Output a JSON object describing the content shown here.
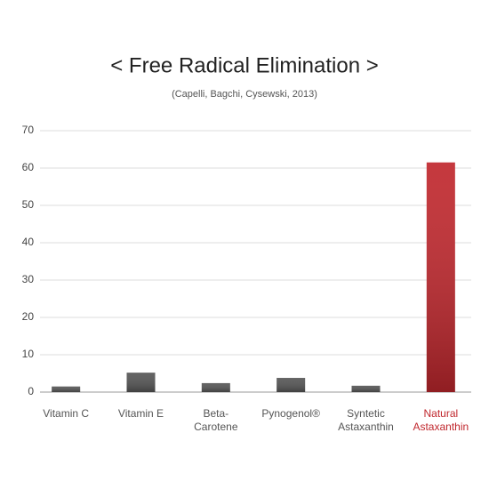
{
  "chart_data": {
    "type": "bar",
    "title": "< Free Radical Elimination >",
    "subtitle": "(Capelli, Bagchi, Cysewski, 2013)",
    "categories": [
      "Vitamin C",
      "Vitamin E",
      "Beta-\nCarotene",
      "Pynogenol®",
      "Syntetic\nAstaxanthin",
      "Natural\nAstaxanthin"
    ],
    "values": [
      1.5,
      5.2,
      2.4,
      3.8,
      1.7,
      61.5
    ],
    "colors": [
      "#555555",
      "#555555",
      "#555555",
      "#555555",
      "#555555",
      "#c0272d"
    ],
    "ylim": [
      0,
      70
    ],
    "yticks": [
      0,
      10,
      20,
      30,
      40,
      50,
      60,
      70
    ],
    "grid": true
  }
}
